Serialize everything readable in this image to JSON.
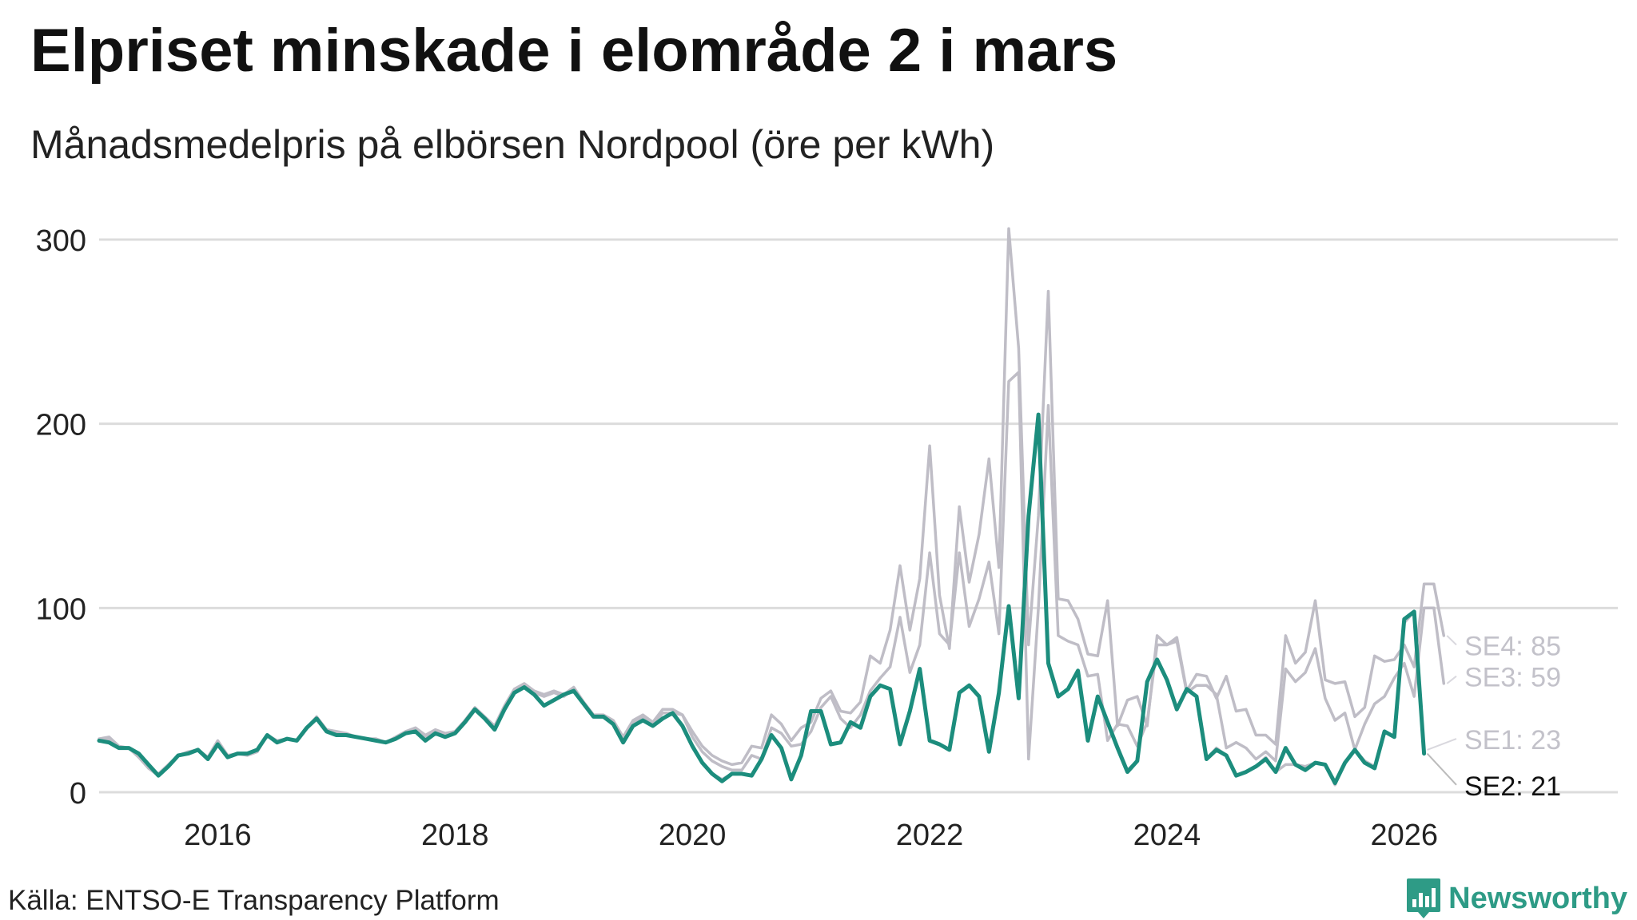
{
  "title": "Elpriset minskade i elområde 2 i mars",
  "subtitle": "Månadsmedelpris på elbörsen Nordpool (öre per kWh)",
  "source": "Källa: ENTSO-E Transparency Platform",
  "brand": {
    "name": "Newsworthy",
    "icon": "bar-chart-logo-icon"
  },
  "colors": {
    "highlight": "#1c8d7d",
    "muted": "#bfbdc6",
    "grid": "#dcdcdc",
    "brand": "#2e9b86"
  },
  "chart_data": {
    "type": "line",
    "start": "2015-01",
    "xlim": [
      2015.0,
      2027.8
    ],
    "ylim": [
      0,
      300
    ],
    "x_ticks": [
      {
        "value": 2016,
        "label": "2016"
      },
      {
        "value": 2018,
        "label": "2018"
      },
      {
        "value": 2020,
        "label": "2020"
      },
      {
        "value": 2022,
        "label": "2022"
      },
      {
        "value": 2024,
        "label": "2024"
      },
      {
        "value": 2026,
        "label": "2026"
      }
    ],
    "y_ticks": [
      {
        "value": 0,
        "label": "0"
      },
      {
        "value": 100,
        "label": "100"
      },
      {
        "value": 200,
        "label": "200"
      },
      {
        "value": 300,
        "label": "300"
      }
    ],
    "grid": true,
    "series": [
      {
        "name": "SE4",
        "label": "SE4: 85",
        "highlight": false,
        "values": [
          29,
          30,
          25,
          24,
          20,
          13,
          10,
          15,
          20,
          22,
          23,
          19,
          28,
          20,
          21,
          21,
          23,
          31,
          28,
          29,
          28,
          35,
          41,
          34,
          33,
          32,
          30,
          29,
          29,
          27,
          30,
          33,
          35,
          31,
          34,
          32,
          33,
          39,
          46,
          41,
          36,
          47,
          56,
          59,
          55,
          53,
          55,
          53,
          57,
          49,
          42,
          42,
          39,
          30,
          39,
          42,
          38,
          45,
          45,
          42,
          33,
          25,
          20,
          17,
          15,
          16,
          25,
          24,
          42,
          37,
          28,
          35,
          38,
          51,
          55,
          44,
          43,
          49,
          74,
          70,
          88,
          123,
          88,
          116,
          188,
          107,
          78,
          155,
          114,
          140,
          181,
          122,
          306,
          241,
          80,
          150,
          272,
          105,
          104,
          94,
          75,
          74,
          104,
          36,
          50,
          52,
          36,
          85,
          80,
          84,
          55,
          64,
          63,
          51,
          63,
          44,
          45,
          31,
          31,
          26,
          85,
          70,
          76,
          104,
          61,
          59,
          60,
          41,
          46,
          74,
          71,
          72,
          80,
          68,
          113,
          113,
          85
        ]
      },
      {
        "name": "SE3",
        "label": "SE3: 59",
        "highlight": false,
        "values": [
          28,
          29,
          24,
          24,
          19,
          13,
          9,
          14,
          20,
          21,
          23,
          18,
          27,
          19,
          21,
          20,
          22,
          31,
          27,
          29,
          28,
          35,
          40,
          33,
          32,
          31,
          30,
          29,
          29,
          27,
          29,
          32,
          34,
          30,
          33,
          31,
          33,
          38,
          45,
          40,
          35,
          46,
          55,
          58,
          54,
          52,
          54,
          52,
          56,
          48,
          41,
          41,
          38,
          28,
          38,
          41,
          36,
          43,
          43,
          42,
          30,
          22,
          17,
          14,
          12,
          12,
          20,
          18,
          35,
          32,
          25,
          26,
          33,
          46,
          52,
          40,
          35,
          42,
          55,
          62,
          68,
          95,
          65,
          80,
          130,
          86,
          80,
          130,
          90,
          105,
          125,
          86,
          223,
          228,
          18,
          100,
          210,
          85,
          82,
          80,
          63,
          64,
          28,
          37,
          36,
          25,
          38,
          80,
          80,
          82,
          54,
          58,
          58,
          53,
          24,
          27,
          24,
          18,
          22,
          17,
          67,
          60,
          65,
          78,
          51,
          39,
          43,
          23,
          37,
          48,
          52,
          62,
          70,
          52,
          100,
          100,
          59
        ]
      },
      {
        "name": "SE1",
        "label": "SE1: 23",
        "highlight": false,
        "values": [
          28,
          27,
          24,
          24,
          21,
          15,
          9,
          14,
          20,
          21,
          23,
          18,
          26,
          19,
          21,
          21,
          23,
          31,
          27,
          29,
          28,
          35,
          40,
          33,
          31,
          31,
          30,
          29,
          28,
          27,
          29,
          32,
          33,
          28,
          32,
          30,
          32,
          38,
          45,
          40,
          34,
          45,
          54,
          57,
          53,
          47,
          50,
          53,
          55,
          48,
          41,
          41,
          37,
          27,
          36,
          39,
          36,
          40,
          43,
          36,
          25,
          16,
          10,
          7,
          10,
          10,
          9,
          18,
          31,
          24,
          8,
          20,
          44,
          44,
          26,
          27,
          38,
          35,
          52,
          58,
          56,
          28,
          44,
          67,
          28,
          26,
          23,
          54,
          58,
          52,
          22,
          54,
          101,
          51,
          150,
          205,
          70,
          52,
          56,
          66,
          28,
          52,
          38,
          25,
          12,
          17,
          60,
          72,
          61,
          45,
          56,
          52,
          18,
          24,
          20,
          9,
          11,
          14,
          19,
          11,
          15,
          15,
          14,
          16,
          15,
          4,
          16,
          23,
          17,
          14,
          33,
          30,
          92,
          98,
          23
        ]
      },
      {
        "name": "SE2",
        "label": "SE2: 21",
        "highlight": true,
        "values": [
          28,
          27,
          24,
          24,
          21,
          15,
          9,
          14,
          20,
          21,
          23,
          18,
          26,
          19,
          21,
          21,
          23,
          31,
          27,
          29,
          28,
          35,
          40,
          33,
          31,
          31,
          30,
          29,
          28,
          27,
          29,
          32,
          33,
          28,
          32,
          30,
          32,
          38,
          45,
          40,
          34,
          45,
          54,
          57,
          53,
          47,
          50,
          53,
          55,
          48,
          41,
          41,
          37,
          27,
          36,
          39,
          36,
          40,
          43,
          36,
          25,
          16,
          10,
          6,
          10,
          10,
          9,
          18,
          31,
          24,
          7,
          20,
          44,
          44,
          26,
          27,
          38,
          35,
          52,
          58,
          56,
          26,
          44,
          67,
          28,
          26,
          23,
          54,
          58,
          52,
          22,
          54,
          101,
          51,
          150,
          205,
          70,
          52,
          56,
          66,
          28,
          52,
          38,
          24,
          11,
          17,
          60,
          72,
          61,
          45,
          56,
          52,
          18,
          23,
          20,
          9,
          11,
          14,
          18,
          11,
          24,
          15,
          12,
          16,
          15,
          5,
          16,
          23,
          16,
          13,
          33,
          30,
          94,
          98,
          21
        ]
      }
    ]
  }
}
